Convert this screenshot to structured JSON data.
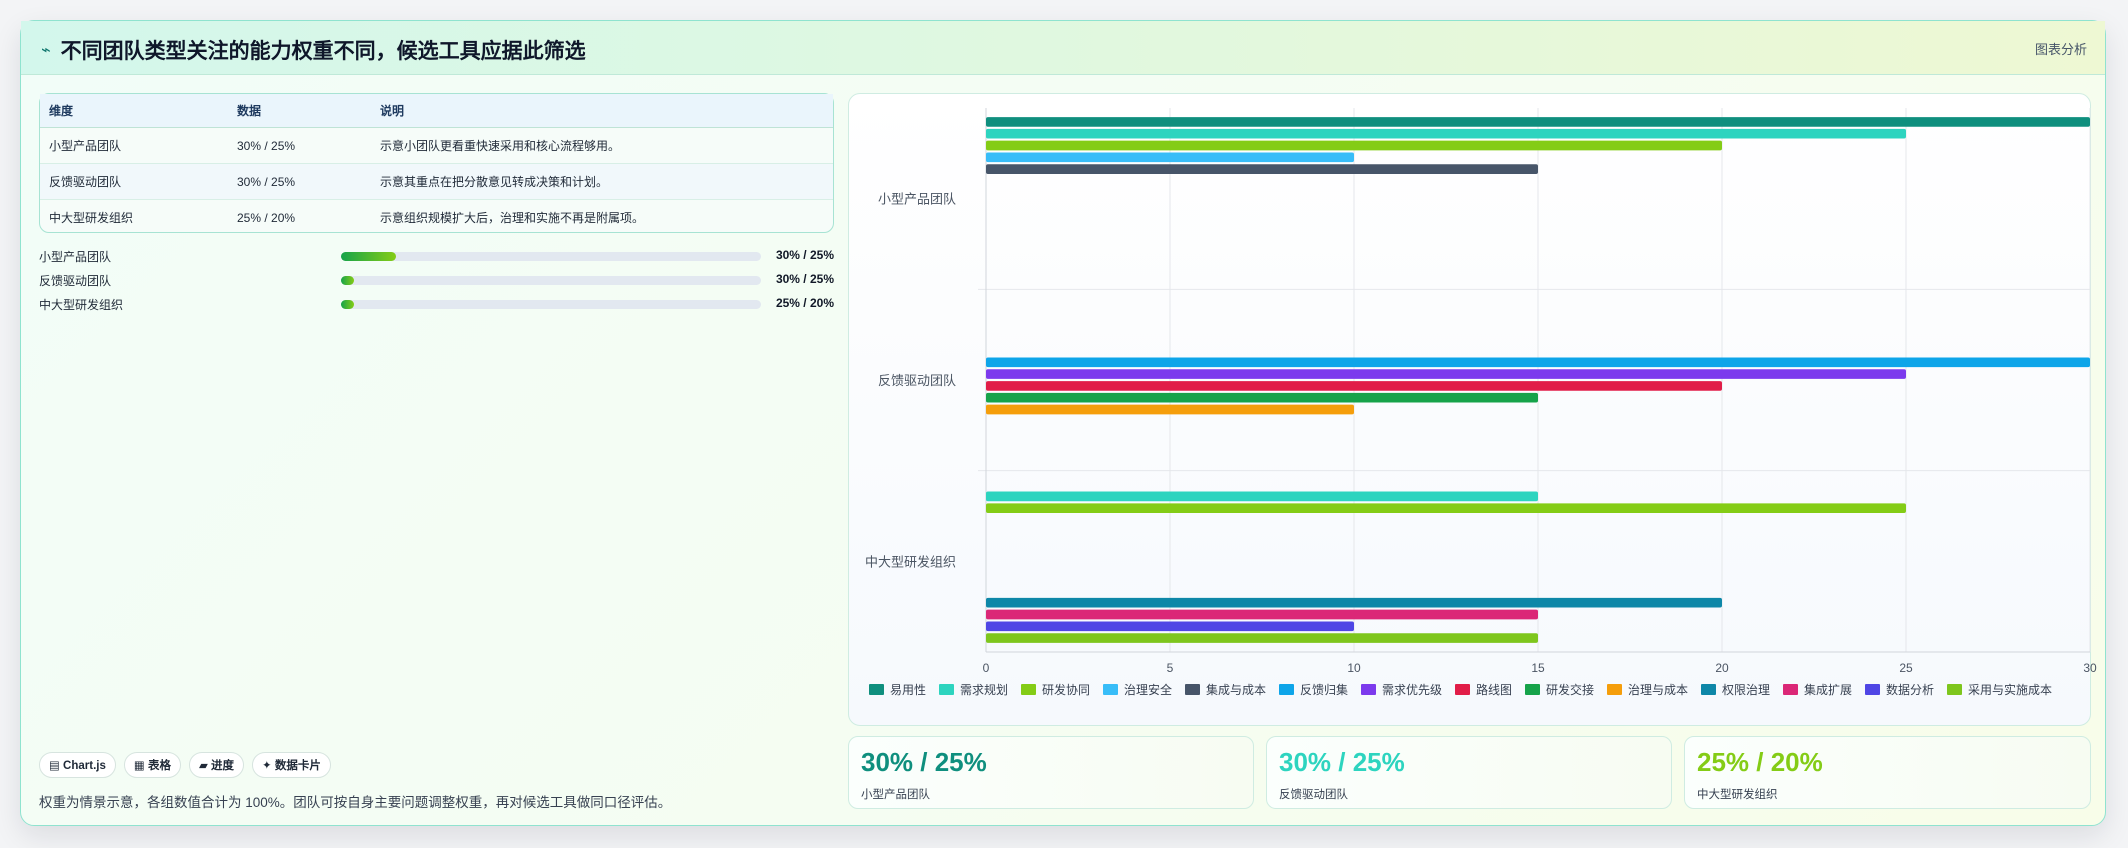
{
  "header": {
    "title": "不同团队类型关注的能力权重不同，候选工具应据此筛选",
    "title_icon": "trend-icon",
    "tag": "图表分析"
  },
  "table": {
    "columns": [
      "维度",
      "数据",
      "说明"
    ],
    "rows": [
      [
        "小型产品团队",
        "30% / 25%",
        "示意小团队更看重快速采用和核心流程够用。"
      ],
      [
        "反馈驱动团队",
        "30% / 25%",
        "示意其重点在把分散意见转成决策和计划。"
      ],
      [
        "中大型研发组织",
        "25% / 20%",
        "示意组织规模扩大后，治理和实施不再是附属项。"
      ]
    ]
  },
  "progress": [
    {
      "label": "小型产品团队",
      "value": "30% / 25%",
      "fill": 0.13
    },
    {
      "label": "反馈驱动团队",
      "value": "30% / 25%",
      "fill": 0.03
    },
    {
      "label": "中大型研发组织",
      "value": "25% / 20%",
      "fill": 0.03
    }
  ],
  "chips": [
    "▤ Chart.js",
    "▦ 表格",
    "▰ 进度",
    "✦ 数据卡片"
  ],
  "footnote": "权重为情景示意，各组数值合计为 100%。团队可按自身主要问题调整权重，再对候选工具做同口径评估。",
  "stats": [
    {
      "value": "30% / 25%",
      "label": "小型产品团队",
      "color": "#0f8f7e"
    },
    {
      "value": "30% / 25%",
      "label": "反馈驱动团队",
      "color": "#2dd4bf"
    },
    {
      "value": "25% / 20%",
      "label": "中大型研发组织",
      "color": "#84cc16"
    }
  ],
  "chart_data": {
    "type": "bar",
    "orientation": "horizontal",
    "categories": [
      "小型产品团队",
      "反馈驱动团队",
      "中大型研发组织"
    ],
    "xlim": [
      0,
      30
    ],
    "xticks": [
      0,
      5,
      10,
      15,
      20,
      25,
      30
    ],
    "grid": true,
    "legend_position": "bottom",
    "series": [
      {
        "name": "易用性",
        "color": "#0f8f7e",
        "values": [
          30,
          null,
          null
        ]
      },
      {
        "name": "需求规划",
        "color": "#2dd4bf",
        "values": [
          25,
          null,
          15
        ]
      },
      {
        "name": "研发协同",
        "color": "#84cc16",
        "values": [
          20,
          null,
          25
        ]
      },
      {
        "name": "治理安全",
        "color": "#38bdf8",
        "values": [
          10,
          null,
          null
        ]
      },
      {
        "name": "集成与成本",
        "color": "#475569",
        "values": [
          15,
          null,
          null
        ]
      },
      {
        "name": "反馈归集",
        "color": "#0ea5e9",
        "values": [
          null,
          30,
          null
        ]
      },
      {
        "name": "需求优先级",
        "color": "#7c3aed",
        "values": [
          null,
          25,
          null
        ]
      },
      {
        "name": "路线图",
        "color": "#e11d48",
        "values": [
          null,
          20,
          null
        ]
      },
      {
        "name": "研发交接",
        "color": "#16a34a",
        "values": [
          null,
          15,
          null
        ]
      },
      {
        "name": "治理与成本",
        "color": "#f59e0b",
        "values": [
          null,
          10,
          null
        ]
      },
      {
        "name": "权限治理",
        "color": "#0e87a8",
        "values": [
          null,
          null,
          20
        ]
      },
      {
        "name": "集成扩展",
        "color": "#db2777",
        "values": [
          null,
          null,
          15
        ]
      },
      {
        "name": "数据分析",
        "color": "#4f46e5",
        "values": [
          null,
          null,
          10
        ]
      },
      {
        "name": "采用与实施成本",
        "color": "#7ec61d",
        "values": [
          null,
          null,
          15
        ]
      }
    ]
  }
}
